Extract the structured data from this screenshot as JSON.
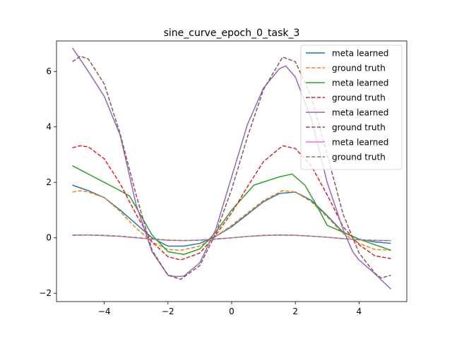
{
  "chart_data": {
    "type": "line",
    "title": "sine_curve_epoch_0_task_3",
    "xlabel": "",
    "ylabel": "",
    "xlim": [
      -5.5,
      5.5
    ],
    "ylim": [
      -2.3,
      7.1
    ],
    "xticks": [
      -4,
      -2,
      0,
      2,
      4
    ],
    "yticks": [
      -2,
      0,
      2,
      4,
      6
    ],
    "xtick_labels": [
      "−4",
      "−2",
      "0",
      "2",
      "4"
    ],
    "ytick_labels": [
      "−2",
      "0",
      "2",
      "4",
      "6"
    ],
    "grid": false,
    "legend_position": "top-right",
    "series": [
      {
        "name": "meta learned",
        "color": "#1f77b4",
        "dash": "solid",
        "x": [
          -5.0,
          -4.5,
          -4.0,
          -3.5,
          -3.0,
          -2.5,
          -2.0,
          -1.5,
          -1.0,
          -0.5,
          0.0,
          0.5,
          1.0,
          1.5,
          2.0,
          2.5,
          3.0,
          3.5,
          4.0,
          4.5,
          5.0
        ],
        "y": [
          1.9,
          1.7,
          1.45,
          1.0,
          0.5,
          0.0,
          -0.3,
          -0.3,
          -0.2,
          0.05,
          0.4,
          0.85,
          1.3,
          1.6,
          1.65,
          1.35,
          0.8,
          0.2,
          -0.05,
          -0.15,
          -0.2
        ]
      },
      {
        "name": "ground truth",
        "color": "#ff7f0e",
        "dash": "dashed",
        "x": [
          -5.0,
          -4.75,
          -4.5,
          -4.0,
          -3.5,
          -3.0,
          -2.5,
          -2.0,
          -1.6,
          -1.0,
          -0.5,
          0.0,
          0.5,
          1.0,
          1.6,
          2.0,
          2.5,
          3.0,
          3.5,
          4.0,
          4.5,
          5.0
        ],
        "y": [
          1.65,
          1.7,
          1.65,
          1.45,
          0.95,
          0.35,
          -0.15,
          -0.42,
          -0.45,
          -0.3,
          0.05,
          0.45,
          0.9,
          1.35,
          1.7,
          1.65,
          1.3,
          0.75,
          0.15,
          -0.2,
          -0.42,
          -0.45
        ]
      },
      {
        "name": "meta learned",
        "color": "#2ca02c",
        "dash": "solid",
        "x": [
          -5.0,
          -4.5,
          -4.0,
          -3.5,
          -3.2,
          -3.0,
          -2.5,
          -2.0,
          -1.5,
          -1.0,
          -0.5,
          0.0,
          0.7,
          1.5,
          1.9,
          2.3,
          2.7,
          3.0,
          3.5,
          4.0,
          4.5,
          5.0
        ],
        "y": [
          2.6,
          2.3,
          2.0,
          1.7,
          1.5,
          1.1,
          0.1,
          -0.5,
          -0.6,
          -0.4,
          0.2,
          1.0,
          1.9,
          2.2,
          2.3,
          1.9,
          1.1,
          0.45,
          0.2,
          -0.05,
          -0.25,
          -0.45
        ]
      },
      {
        "name": "ground truth",
        "color": "#d62728",
        "dash": "dashed",
        "x": [
          -5.0,
          -4.75,
          -4.5,
          -4.0,
          -3.5,
          -3.0,
          -2.5,
          -2.0,
          -1.6,
          -1.0,
          -0.5,
          0.0,
          0.5,
          1.0,
          1.6,
          2.0,
          2.5,
          3.0,
          3.5,
          4.0,
          4.5,
          5.0
        ],
        "y": [
          3.25,
          3.32,
          3.28,
          2.85,
          1.95,
          0.85,
          -0.15,
          -0.68,
          -0.8,
          -0.55,
          0.1,
          0.9,
          1.85,
          2.75,
          3.32,
          3.22,
          2.6,
          1.55,
          0.4,
          -0.25,
          -0.65,
          -0.75
        ]
      },
      {
        "name": "meta learned",
        "color": "#9467bd",
        "dash": "solid",
        "x": [
          -5.0,
          -4.5,
          -4.0,
          -3.5,
          -3.0,
          -2.5,
          -2.0,
          -1.75,
          -1.5,
          -1.0,
          -0.5,
          0.0,
          0.5,
          1.0,
          1.5,
          1.7,
          2.0,
          2.5,
          3.0,
          3.5,
          3.8,
          4.0,
          4.5,
          5.0
        ],
        "y": [
          6.85,
          6.0,
          5.1,
          3.7,
          1.2,
          -0.5,
          -1.35,
          -1.4,
          -1.38,
          -0.9,
          0.3,
          2.2,
          4.1,
          5.4,
          6.1,
          6.2,
          5.8,
          4.3,
          2.0,
          0.3,
          -0.5,
          -0.8,
          -1.3,
          -1.85
        ]
      },
      {
        "name": "ground truth",
        "color": "#8c564b",
        "dash": "dashed",
        "x": [
          -5.0,
          -4.75,
          -4.5,
          -4.0,
          -3.5,
          -3.0,
          -2.5,
          -2.0,
          -1.6,
          -1.0,
          -0.5,
          0.0,
          0.5,
          1.0,
          1.6,
          2.0,
          2.5,
          3.0,
          3.5,
          4.0,
          4.5,
          4.7,
          5.0
        ],
        "y": [
          6.35,
          6.55,
          6.45,
          5.55,
          3.75,
          1.55,
          -0.45,
          -1.35,
          -1.5,
          -1.0,
          0.15,
          1.75,
          3.65,
          5.35,
          6.52,
          6.35,
          5.1,
          3.0,
          0.85,
          -0.55,
          -1.28,
          -1.45,
          -1.35
        ]
      },
      {
        "name": "meta learned",
        "color": "#e377c2",
        "dash": "solid",
        "x": [
          -5.0,
          -4.5,
          -4.0,
          -3.5,
          -3.0,
          -2.5,
          -2.0,
          -1.5,
          -1.0,
          -0.5,
          0.0,
          0.5,
          1.0,
          1.5,
          2.0,
          2.5,
          3.0,
          3.5,
          4.0,
          4.5,
          5.0
        ],
        "y": [
          0.1,
          0.1,
          0.08,
          0.05,
          0.0,
          -0.05,
          -0.09,
          -0.1,
          -0.08,
          -0.04,
          0.0,
          0.05,
          0.08,
          0.1,
          0.09,
          0.06,
          0.02,
          -0.03,
          -0.07,
          -0.1,
          -0.1
        ]
      },
      {
        "name": "ground truth",
        "color": "#7f7f7f",
        "dash": "dashed",
        "x": [
          -5.0,
          -4.5,
          -4.0,
          -3.5,
          -3.0,
          -2.5,
          -2.0,
          -1.5,
          -1.0,
          -0.5,
          0.0,
          0.5,
          1.0,
          1.5,
          2.0,
          2.5,
          3.0,
          3.5,
          4.0,
          4.5,
          5.0
        ],
        "y": [
          0.09,
          0.1,
          0.09,
          0.06,
          0.01,
          -0.04,
          -0.08,
          -0.1,
          -0.09,
          -0.05,
          0.0,
          0.05,
          0.09,
          0.1,
          0.09,
          0.06,
          0.02,
          -0.03,
          -0.07,
          -0.09,
          -0.1
        ]
      }
    ]
  }
}
